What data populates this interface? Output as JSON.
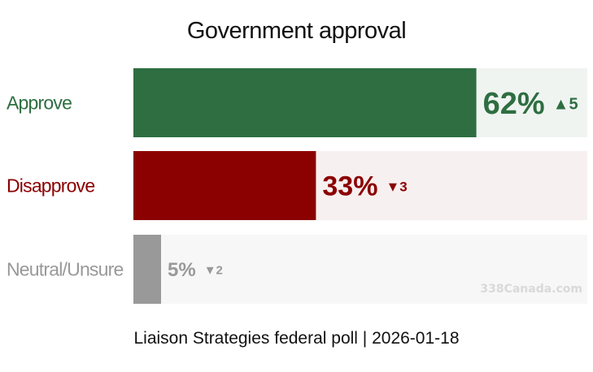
{
  "chart_data": {
    "type": "bar",
    "orientation": "horizontal",
    "title": "Government approval",
    "categories": [
      "Approve",
      "Disapprove",
      "Neutral/Unsure"
    ],
    "values": [
      62,
      33,
      5
    ],
    "value_labels": [
      "62%",
      "33%",
      "5%"
    ],
    "changes": [
      {
        "direction": "up",
        "glyph": "▲",
        "amount": "5"
      },
      {
        "direction": "down",
        "glyph": "▼",
        "amount": "3"
      },
      {
        "direction": "down",
        "glyph": "▼",
        "amount": "2"
      }
    ],
    "colors": [
      "#2e6e41",
      "#8b0000",
      "#999999"
    ],
    "track_colors": [
      "#f0f4f1",
      "#f7f0f0",
      "#f7f7f7"
    ],
    "xlim": [
      0,
      100
    ],
    "grid": false,
    "legend": "none"
  },
  "footer": "Liaison Strategies federal poll | 2026-01-18",
  "watermark": "338Canada.com"
}
